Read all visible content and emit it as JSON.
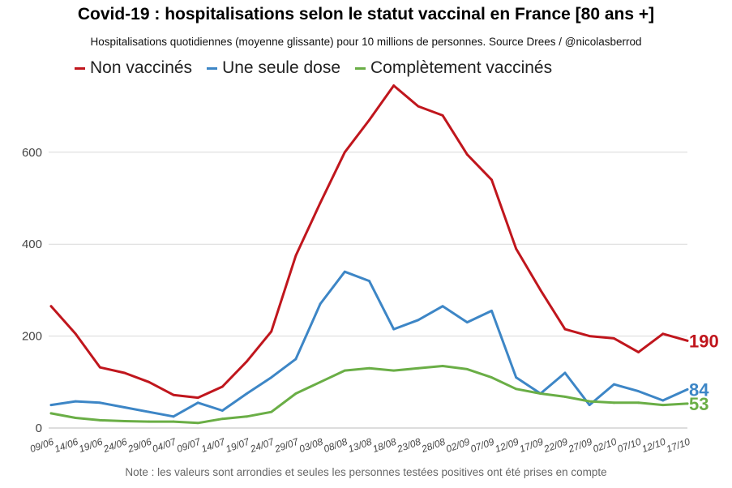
{
  "chart_data": {
    "type": "line",
    "title": "Covid-19 : hospitalisations selon le statut vaccinal en France [80 ans +]",
    "subtitle": "Hospitalisations quotidiennes (moyenne glissante) pour 10 millions de personnes. Source Drees / @nicolasberrod",
    "note": "Note : les valeurs sont arrondies et seules les personnes testées positives ont été prises en compte",
    "ylim": [
      0,
      760
    ],
    "yticks": [
      0,
      200,
      400,
      600
    ],
    "grid": true,
    "legend_position": "top",
    "categories": [
      "09/06",
      "14/06",
      "19/06",
      "24/06",
      "29/06",
      "04/07",
      "09/07",
      "14/07",
      "19/07",
      "24/07",
      "29/07",
      "03/08",
      "08/08",
      "13/08",
      "18/08",
      "23/08",
      "28/08",
      "02/09",
      "07/09",
      "12/09",
      "17/09",
      "22/09",
      "27/09",
      "02/10",
      "07/10",
      "12/10",
      "17/10"
    ],
    "series": [
      {
        "name": "Non vaccinés",
        "color": "#c0161d",
        "end_label": "190",
        "values": [
          265,
          205,
          132,
          120,
          100,
          72,
          66,
          90,
          145,
          210,
          375,
          490,
          600,
          670,
          745,
          700,
          680,
          595,
          540,
          390,
          300,
          215,
          200,
          195,
          165,
          205,
          190
        ]
      },
      {
        "name": "Une seule dose",
        "color": "#3d86c6",
        "end_label": "84",
        "values": [
          50,
          58,
          55,
          45,
          35,
          25,
          55,
          38,
          75,
          110,
          150,
          270,
          340,
          320,
          215,
          235,
          265,
          230,
          255,
          110,
          75,
          120,
          50,
          95,
          80,
          60,
          84
        ]
      },
      {
        "name": "Complètement vaccinés",
        "color": "#6aae46",
        "end_label": "53",
        "values": [
          32,
          22,
          17,
          15,
          14,
          14,
          11,
          20,
          25,
          35,
          75,
          100,
          125,
          130,
          125,
          130,
          135,
          128,
          110,
          85,
          75,
          68,
          58,
          55,
          55,
          50,
          53
        ]
      }
    ]
  }
}
